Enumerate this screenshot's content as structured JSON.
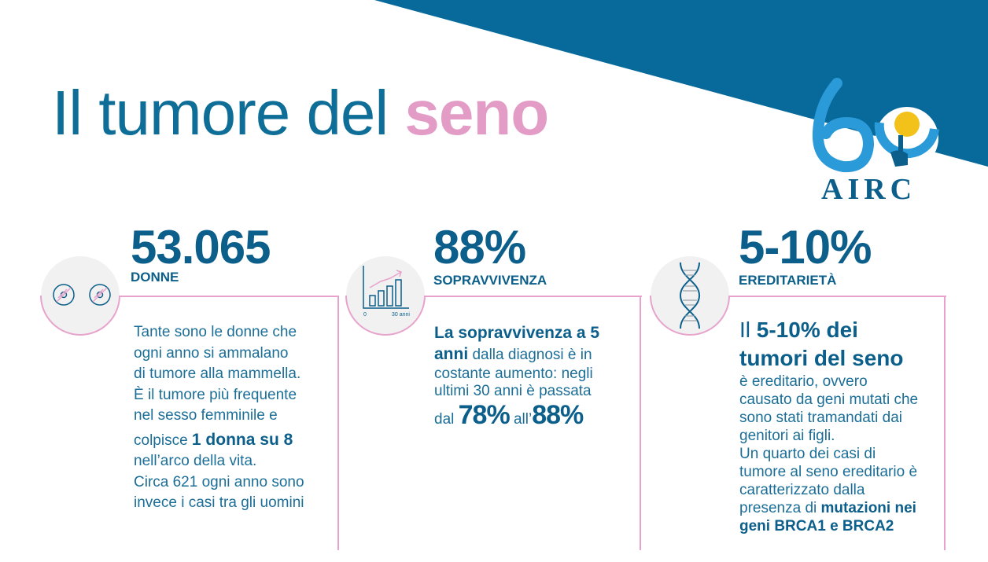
{
  "header": {
    "title_main": "Il tumore del ",
    "title_accent": "seno"
  },
  "logo": {
    "number": "60",
    "brand": "AIRC"
  },
  "stats": [
    {
      "value": "53.065",
      "label": "DONNE",
      "icon": "two-cells-icon",
      "text_lines": [
        "Tante sono le donne che",
        "ogni anno si ammalano",
        "di tumore alla mammella.",
        "È il tumore più frequente",
        "nel sesso femminile e"
      ],
      "text_pre": "colpisce ",
      "text_bold": "1 donna su 8",
      "text_lines_after": [
        "nell’arco della vita.",
        "Circa 621 ogni anno sono",
        "invece i casi tra gli uomini"
      ]
    },
    {
      "value": "88%",
      "label": "SOPRAVVIVENZA",
      "icon": "growth-chart-icon",
      "icon_axis_start": "0",
      "icon_axis_end": "30 anni",
      "text_bold_1": "La sopravvivenza a 5",
      "text_bold_2": "anni",
      "text_rest_2": " dalla diagnosi è in",
      "text_lines": [
        "costante aumento: negli",
        "ultimi 30 anni è passata"
      ],
      "from_prefix": "dal ",
      "from_value": "78%",
      "to_prefix": " all’",
      "to_value": "88%"
    },
    {
      "value": "5-10%",
      "label": "EREDITARIETÀ",
      "icon": "dna-icon",
      "headline_pre": "Il ",
      "headline_1": "5-10% dei",
      "headline_2": "tumori del seno",
      "text_lines": [
        "è ereditario, ovvero",
        "causato da geni mutati che",
        "sono stati tramandati dai",
        "genitori ai figli.",
        "Un quarto dei casi di",
        "tumore al seno ereditario è",
        "caratterizzato dalla"
      ],
      "text_pre": "presenza di ",
      "text_bold_1": "mutazioni nei",
      "text_bold_2": "geni BRCA1 e BRCA2"
    }
  ],
  "colors": {
    "primary_blue": "#0b5f8a",
    "corner_blue": "#086a9b",
    "accent_pink": "#e39cc6",
    "logo_light_blue": "#2a9ad8",
    "logo_yellow": "#f2c21b",
    "badge_bg": "#f1f1f2"
  }
}
